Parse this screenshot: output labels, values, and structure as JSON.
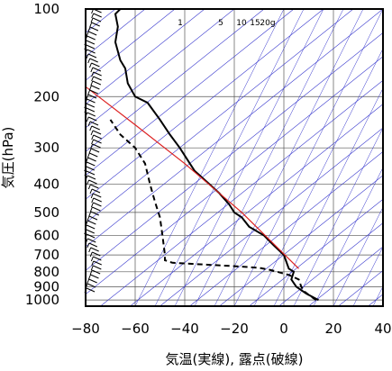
{
  "chart_data": {
    "type": "line",
    "title": "",
    "xlabel": "気温(実線), 露点(破線)",
    "ylabel": "気圧(hPa)",
    "xlim": [
      -80,
      40
    ],
    "ylim": [
      1050,
      100
    ],
    "yscale": "log",
    "x_ticks": [
      -80,
      -60,
      -40,
      -20,
      0,
      20,
      40
    ],
    "y_ticks": [
      100,
      200,
      300,
      400,
      500,
      600,
      700,
      800,
      900,
      1000
    ],
    "grid": true,
    "mixing_ratio_labels": [
      "1",
      "5",
      "10",
      "15",
      "20g"
    ],
    "colors": {
      "temperature": "#000000",
      "dewpoint": "#000000",
      "dry_adiabat": "#3333cc",
      "parcel_line": "#dd2222",
      "grid": "#555555"
    },
    "series": [
      {
        "style": "solid",
        "x": [
          14,
          9,
          5,
          3,
          4,
          2,
          0,
          -4,
          -8,
          -14,
          -17,
          -20,
          -22,
          -26,
          -30,
          -36,
          -42,
          -46,
          -50,
          -55,
          -60,
          -63,
          -64,
          -66,
          -68,
          -67,
          -68,
          -66
        ],
        "y": [
          1000,
          950,
          900,
          850,
          800,
          780,
          700,
          650,
          600,
          560,
          520,
          500,
          470,
          430,
          400,
          360,
          300,
          270,
          240,
          210,
          200,
          180,
          160,
          150,
          130,
          115,
          104,
          100
        ]
      },
      {
        "style": "dashed",
        "x": [
          13,
          10,
          8,
          7,
          6,
          2,
          -5,
          -10,
          -20,
          -45,
          -48,
          -48,
          -49,
          -50,
          -52,
          -54,
          -56,
          -60,
          -66,
          -70
        ],
        "y": [
          1000,
          960,
          930,
          900,
          850,
          820,
          790,
          775,
          765,
          745,
          730,
          700,
          600,
          520,
          460,
          400,
          340,
          300,
          270,
          240
        ]
      },
      {
        "style": "red-line",
        "x": [
          6,
          -17,
          -40,
          -60,
          -80
        ],
        "y": [
          780,
          500,
          340,
          250,
          185
        ]
      }
    ],
    "wind_barbs": true
  }
}
